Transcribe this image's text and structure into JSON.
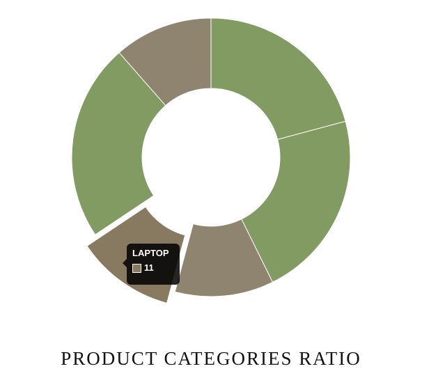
{
  "chart_data": {
    "type": "pie",
    "variant": "doughnut",
    "title": "PRODUCT CATEGORIES RATIO",
    "highlighted_slice": 3,
    "slices": [
      {
        "value": 20,
        "color": "#829b62"
      },
      {
        "value": 21,
        "color": "#829b62"
      },
      {
        "value": 11,
        "color": "#8e8470"
      },
      {
        "value": 11,
        "color": "#877a60"
      },
      {
        "value": 22,
        "color": "#829b62"
      },
      {
        "value": 11,
        "color": "#8e8470"
      }
    ],
    "tooltip": {
      "label": "LAPTOP",
      "value": "11",
      "swatch_color": "#877a60"
    }
  }
}
